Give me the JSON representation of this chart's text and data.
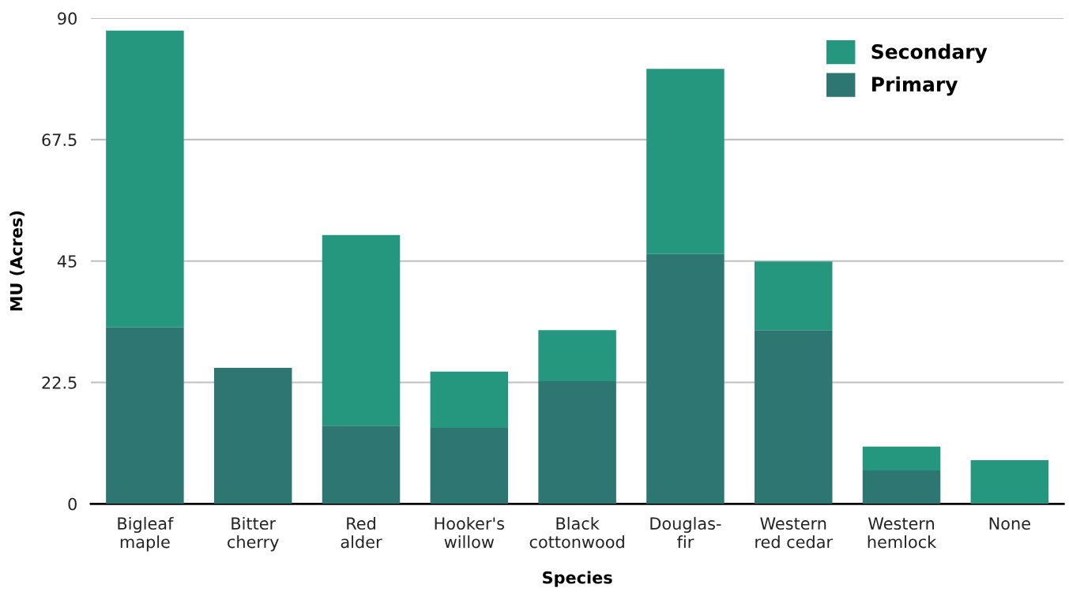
{
  "chart_data": {
    "type": "bar",
    "stacked": true,
    "xlabel": "Species",
    "ylabel": "MU (Acres)",
    "categories": [
      "Bigleaf\nmaple",
      "Bitter\ncherry",
      "Red\nalder",
      "Hooker's\nwillow",
      "Black\ncottonwood",
      "Douglas-\nfir",
      "Western\nred cedar",
      "Western\nhemlock",
      "None"
    ],
    "series": [
      {
        "name": "Primary",
        "color": "#2e7672",
        "values": [
          32.7,
          25.2,
          14.5,
          14.1,
          22.7,
          46.3,
          32.2,
          6.2,
          0
        ]
      },
      {
        "name": "Secondary",
        "color": "#26977f",
        "values": [
          55.0,
          0,
          35.3,
          10.4,
          9.5,
          34.3,
          12.7,
          4.4,
          8.1
        ]
      }
    ],
    "ylim": [
      0,
      90
    ],
    "yticks": [
      0,
      22.5,
      45,
      67.5,
      90
    ],
    "grid": "y",
    "legend": "top right"
  }
}
